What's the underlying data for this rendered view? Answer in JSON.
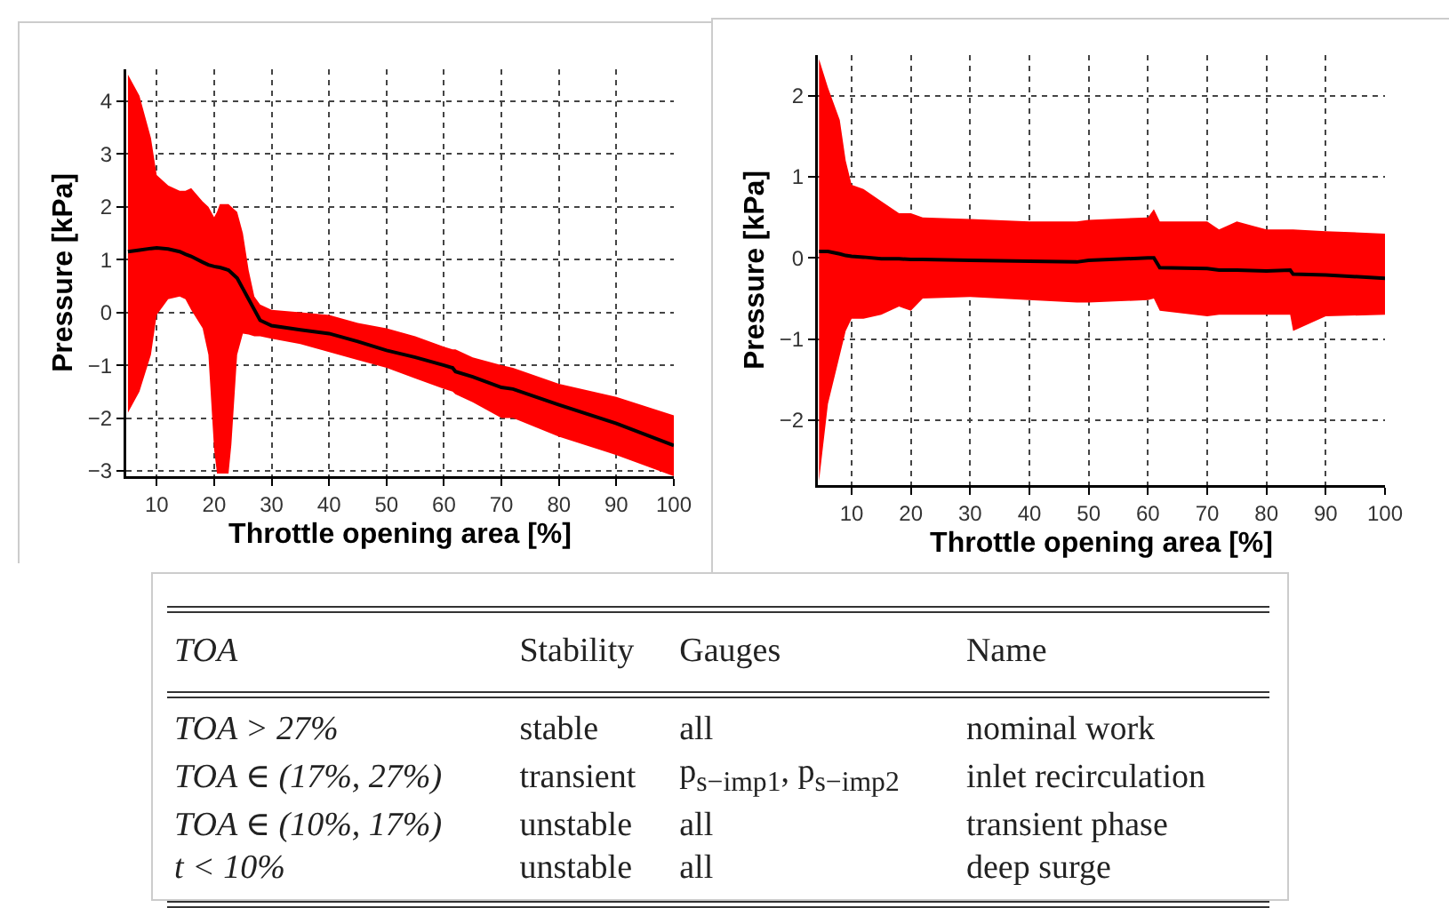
{
  "chart_data": [
    {
      "type": "line",
      "xlabel": "Throttle opening area [%]",
      "ylabel": "Pressure [kPa]",
      "x": [
        5,
        7,
        9,
        10,
        12,
        14,
        15,
        16,
        18,
        19,
        20,
        20.5,
        21,
        22.5,
        23,
        24,
        25,
        26,
        27,
        28,
        30,
        35,
        40,
        45,
        50,
        55,
        60,
        61.5,
        62,
        65,
        70,
        72,
        80,
        90,
        100
      ],
      "series": [
        {
          "color": "#000000",
          "values": [
            1.15,
            1.18,
            1.21,
            1.22,
            1.2,
            1.15,
            1.1,
            1.06,
            0.95,
            0.9,
            0.87,
            0.86,
            0.85,
            0.8,
            0.75,
            0.65,
            0.45,
            0.25,
            0.05,
            -0.15,
            -0.25,
            -0.33,
            -0.4,
            -0.55,
            -0.72,
            -0.85,
            -1.0,
            -1.05,
            -1.12,
            -1.22,
            -1.42,
            -1.45,
            -1.75,
            -2.1,
            -2.52
          ],
          "upper": [
            4.5,
            4.1,
            3.3,
            2.6,
            2.4,
            2.3,
            2.3,
            2.35,
            2.1,
            2.0,
            1.8,
            1.9,
            2.05,
            2.05,
            2.0,
            1.9,
            1.5,
            0.8,
            0.3,
            0.15,
            0.05,
            0,
            -0.05,
            -0.2,
            -0.3,
            -0.45,
            -0.65,
            -0.7,
            -0.7,
            -0.85,
            -1.0,
            -1.05,
            -1.35,
            -1.6,
            -1.95
          ],
          "lower": [
            -1.9,
            -1.5,
            -0.8,
            -0.05,
            0.25,
            0.3,
            0.25,
            0.05,
            -0.3,
            -0.8,
            -2.6,
            -3.05,
            -3.05,
            -3.05,
            -2.5,
            -0.8,
            -0.4,
            -0.42,
            -0.45,
            -0.45,
            -0.5,
            -0.6,
            -0.75,
            -0.9,
            -1.05,
            -1.25,
            -1.45,
            -1.5,
            -1.55,
            -1.7,
            -2.0,
            -2.0,
            -2.35,
            -2.7,
            -3.1
          ]
        }
      ],
      "xlim": [
        4.7,
        100
      ],
      "ylim": [
        -3.1,
        4.6
      ],
      "xticks": [
        10,
        20,
        30,
        40,
        50,
        60,
        70,
        80,
        90,
        100
      ],
      "yticks": [
        -3,
        -2,
        -1,
        0,
        1,
        2,
        3,
        4
      ],
      "grid": true
    },
    {
      "type": "line",
      "xlabel": "Throttle opening area [%]",
      "ylabel": "Pressure [kPa]",
      "x": [
        4.5,
        6,
        8,
        9,
        10,
        12,
        15,
        18,
        20,
        22,
        30,
        40,
        48,
        50,
        60,
        61,
        62,
        70,
        72,
        75,
        80,
        84,
        84.5,
        90,
        100
      ],
      "series": [
        {
          "color": "#000000",
          "values": [
            0.08,
            0.08,
            0.05,
            0.03,
            0.02,
            0.01,
            -0.01,
            -0.01,
            -0.02,
            -0.02,
            -0.03,
            -0.04,
            -0.05,
            -0.03,
            0,
            0,
            -0.12,
            -0.13,
            -0.15,
            -0.15,
            -0.16,
            -0.15,
            -0.2,
            -0.21,
            -0.25
          ],
          "upper": [
            2.45,
            2.1,
            1.7,
            1.2,
            0.9,
            0.85,
            0.7,
            0.55,
            0.55,
            0.5,
            0.48,
            0.45,
            0.45,
            0.47,
            0.5,
            0.6,
            0.45,
            0.45,
            0.35,
            0.45,
            0.35,
            0.35,
            0.35,
            0.33,
            0.3
          ],
          "lower": [
            -2.75,
            -1.8,
            -1.2,
            -0.9,
            -0.75,
            -0.75,
            -0.7,
            -0.6,
            -0.65,
            -0.5,
            -0.48,
            -0.52,
            -0.55,
            -0.55,
            -0.52,
            -0.5,
            -0.65,
            -0.72,
            -0.7,
            -0.7,
            -0.7,
            -0.7,
            -0.9,
            -0.72,
            -0.7
          ]
        }
      ],
      "xlim": [
        4.3,
        100
      ],
      "ylim": [
        -2.8,
        2.5
      ],
      "xticks": [
        10,
        20,
        30,
        40,
        50,
        60,
        70,
        80,
        90,
        100
      ],
      "yticks": [
        -2,
        -1,
        0,
        1,
        2
      ],
      "grid": true
    },
    {
      "type": "other",
      "annotations": [
        "TOA",
        "Stability",
        "Gauges",
        "Name",
        "TOA > 27%",
        "stable",
        "all",
        "nominal work",
        "TOA ∈ (17%, 27%)",
        "transient",
        "p$_{s−imp1}$, p$_{s−imp2}$",
        "inlet recirculation",
        "TOA ∈ (10%, 17%)",
        "unstable",
        "all",
        "transient phase",
        "t < 10%",
        "unstable",
        "all",
        "deep surge"
      ]
    }
  ]
}
